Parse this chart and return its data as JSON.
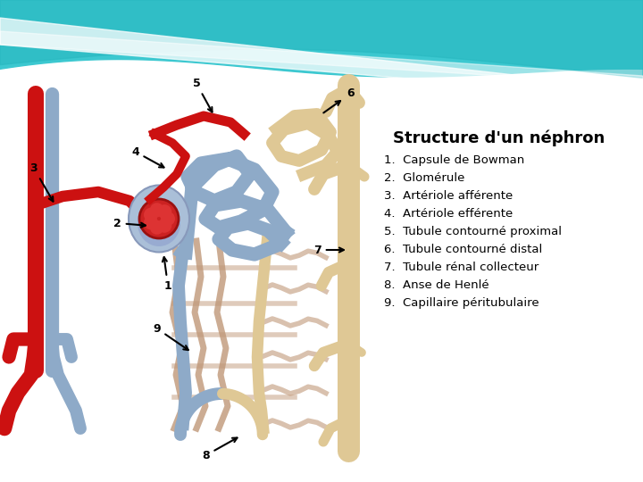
{
  "title": "Structure d'un néphron",
  "title_fontsize": 13,
  "title_fontweight": "bold",
  "legend_items": [
    "1.  Capsule de Bowman",
    "2.  Glomérule",
    "3.  Artériole afférente",
    "4.  Artériole efférente",
    "5.  Tubule contourné proximal",
    "6.  Tubule contourné distal",
    "7.  Tubule rénal collecteur",
    "8.  Anse de Henlé",
    "9.  Capillaire péritubulaire"
  ],
  "legend_fontsize": 9.5,
  "red": "#cc1111",
  "blue": "#8eaac8",
  "tan": "#dfc895",
  "tan_dark": "#c8a87a",
  "peritub": "#c09878",
  "fig_width": 7.2,
  "fig_height": 5.4,
  "dpi": 100
}
